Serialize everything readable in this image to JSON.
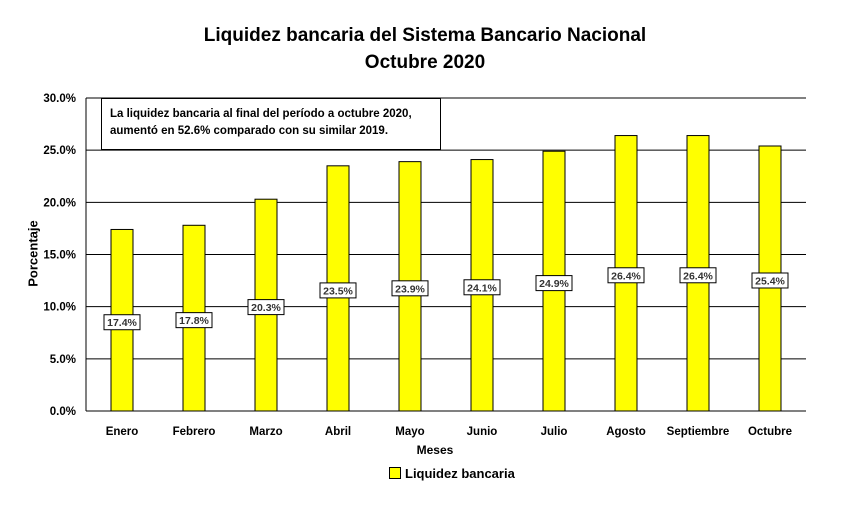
{
  "chart_data": {
    "type": "bar",
    "title": "Liquidez bancaria  del Sistema Bancario Nacional",
    "subtitle": "Octubre 2020",
    "xlabel": "Meses",
    "ylabel": "Porcentaje",
    "ylim": [
      0,
      30
    ],
    "yticks": [
      "0.0%",
      "5.0%",
      "10.0%",
      "15.0%",
      "20.0%",
      "25.0%",
      "30.0%"
    ],
    "grid": true,
    "legend_position": "bottom",
    "categories": [
      "Enero",
      "Febrero",
      "Marzo",
      "Abril",
      "Mayo",
      "Junio",
      "Julio",
      "Agosto",
      "Septiembre",
      "Octubre"
    ],
    "series": [
      {
        "name": "Liquidez bancaria",
        "color": "#ffff00",
        "values": [
          17.4,
          17.8,
          20.3,
          23.5,
          23.9,
          24.1,
          24.9,
          26.4,
          26.4,
          25.4
        ],
        "data_labels": [
          "17.4%",
          "17.8%",
          "20.3%",
          "23.5%",
          "23.9%",
          "24.1%",
          "24.9%",
          "26.4%",
          "26.4%",
          "25.4%"
        ]
      }
    ],
    "annotation": {
      "line1": "La liquidez bancaria  al final  del período a octubre 2020,",
      "line2": "aumentó en 52.6% comparado  con su similar 2019."
    }
  }
}
